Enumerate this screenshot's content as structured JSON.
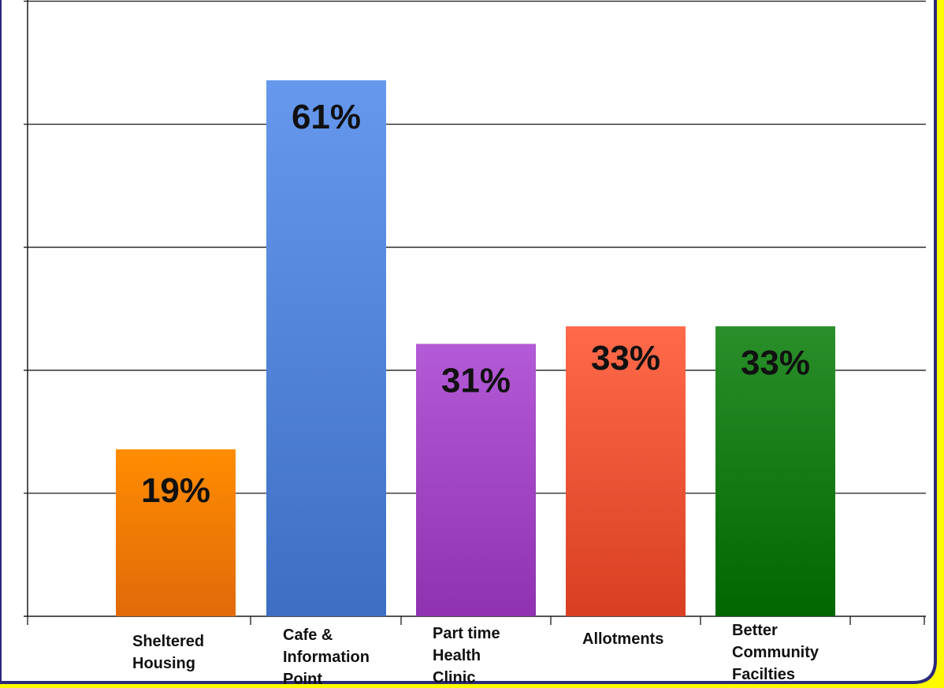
{
  "chart_data": {
    "type": "bar",
    "categories": [
      [
        "Sheltered",
        "Housing"
      ],
      [
        "Cafe &",
        "Information",
        "Point"
      ],
      [
        "Part time",
        "Health",
        "Clinic"
      ],
      [
        "Allotments"
      ],
      [
        "Better",
        "Community",
        "Facilties"
      ]
    ],
    "values": [
      19,
      61,
      31,
      33,
      33
    ],
    "data_labels": [
      "19%",
      "61%",
      "31%",
      "33%",
      "33%"
    ],
    "colors": [
      [
        "#ff8c00",
        "#e06a0a"
      ],
      [
        "#6699ee",
        "#3d6ec4"
      ],
      [
        "#b35ad6",
        "#9032b0"
      ],
      [
        "#ff6a4a",
        "#d83f22"
      ],
      [
        "#2a8f2a",
        "#006600"
      ]
    ],
    "title": "",
    "xlabel": "",
    "ylabel": "",
    "ylim": [
      0,
      70
    ],
    "grid": true,
    "legend": "none"
  },
  "frame": {
    "background": "#ffffff",
    "border_color": "#2b2a7a",
    "outer_color": "#fffa00"
  }
}
